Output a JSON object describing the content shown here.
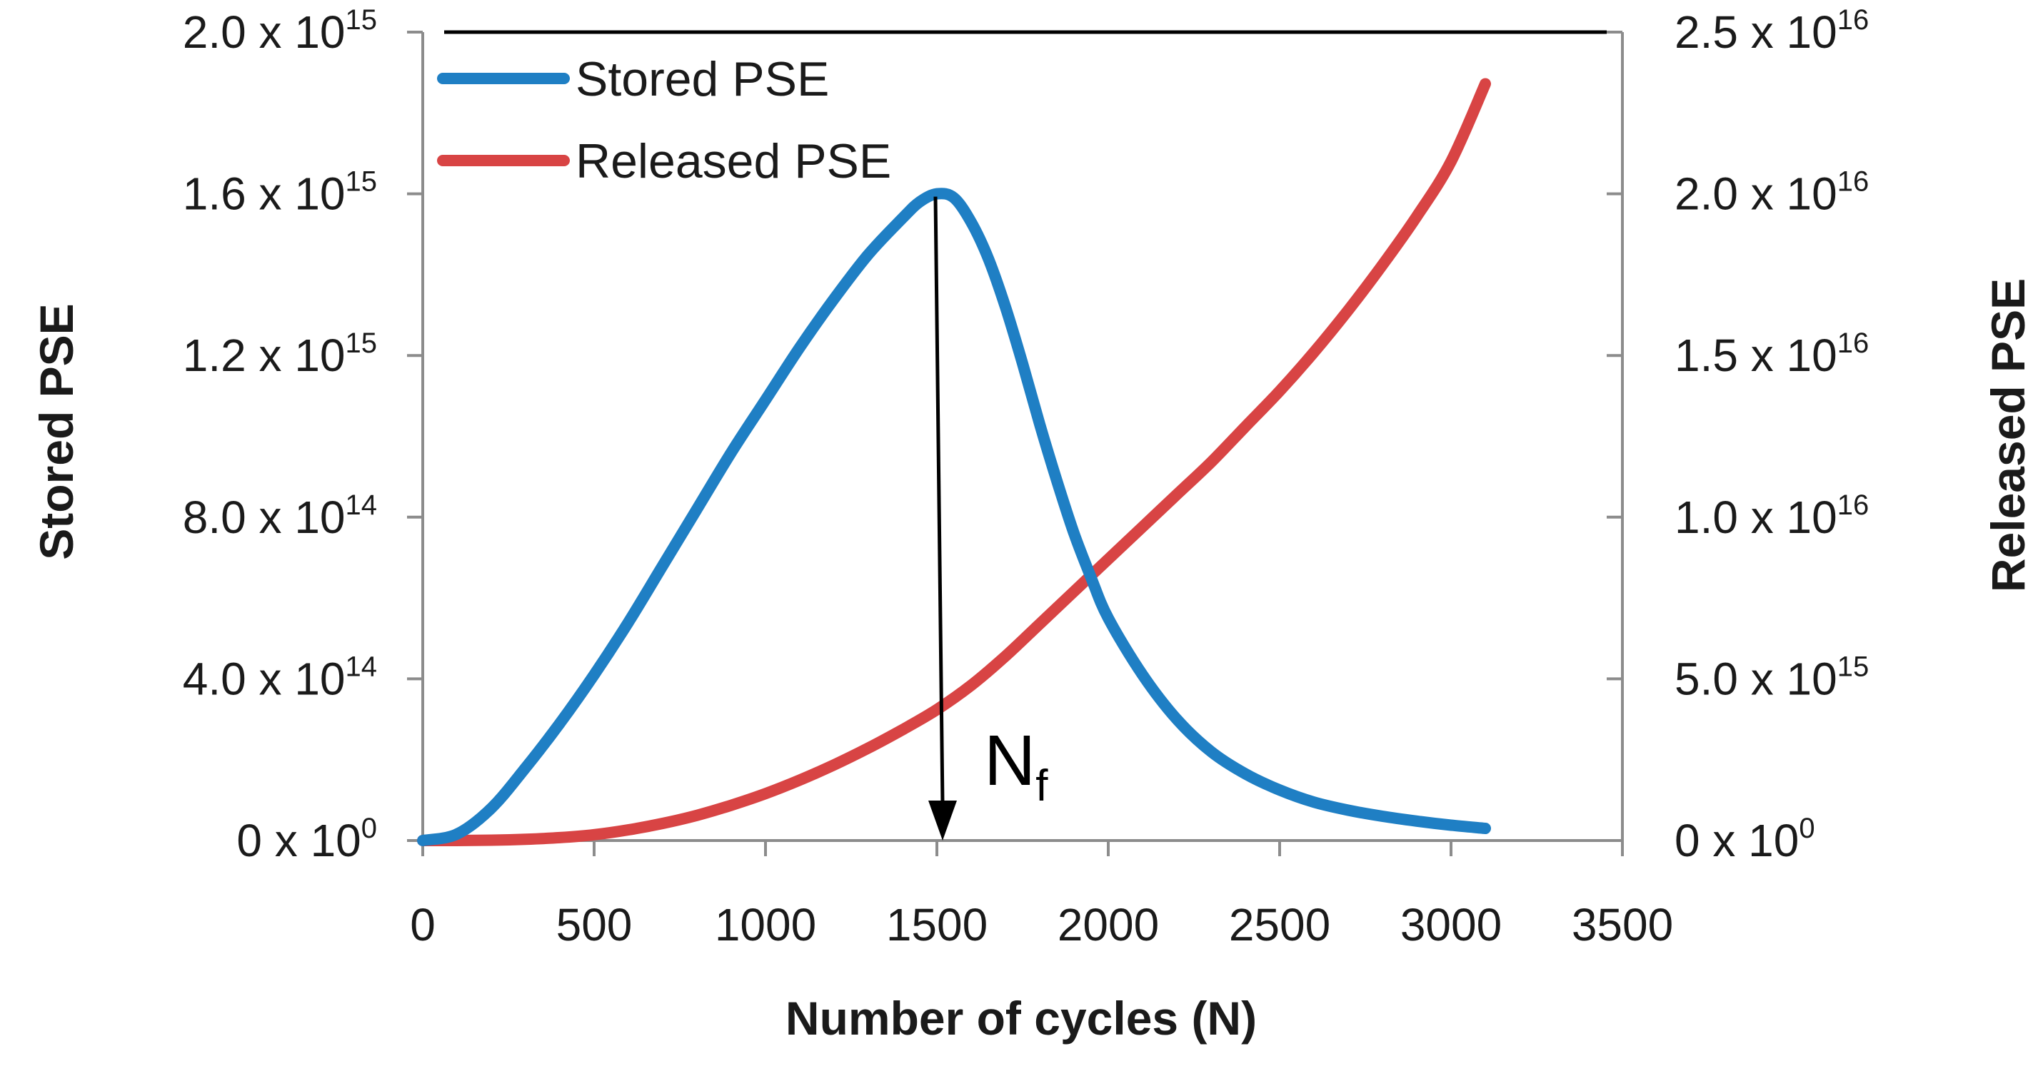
{
  "chart_data": {
    "type": "line",
    "title": "",
    "xlabel": "Number of cycles (N)",
    "ylabel_left": "Stored PSE",
    "ylabel_right": "Released PSE",
    "xlim": [
      0,
      3500
    ],
    "ylim_left": [
      0,
      2000000000000000.0
    ],
    "ylim_right": [
      0,
      2.5e+16
    ],
    "grid": false,
    "legend_position": "top-left",
    "x_ticks": [
      {
        "value": 0,
        "label": "0"
      },
      {
        "value": 500,
        "label": "500"
      },
      {
        "value": 1000,
        "label": "1000"
      },
      {
        "value": 1500,
        "label": "1500"
      },
      {
        "value": 2000,
        "label": "2000"
      },
      {
        "value": 2500,
        "label": "2500"
      },
      {
        "value": 3000,
        "label": "3000"
      },
      {
        "value": 3500,
        "label": "3500"
      }
    ],
    "y_left_ticks": [
      {
        "value": 0,
        "mantissa": "0 x 10",
        "exp": "0"
      },
      {
        "value": 400000000000000.0,
        "mantissa": "4.0 x 10",
        "exp": "14"
      },
      {
        "value": 800000000000000.0,
        "mantissa": "8.0 x 10",
        "exp": "14"
      },
      {
        "value": 1200000000000000.0,
        "mantissa": "1.2 x 10",
        "exp": "15"
      },
      {
        "value": 1600000000000000.0,
        "mantissa": "1.6 x 10",
        "exp": "15"
      },
      {
        "value": 2000000000000000.0,
        "mantissa": "2.0 x 10",
        "exp": "15"
      }
    ],
    "y_right_ticks": [
      {
        "value": 0,
        "mantissa": "0 x 10",
        "exp": "0"
      },
      {
        "value": 5000000000000000.0,
        "mantissa": "5.0 x 10",
        "exp": "15"
      },
      {
        "value": 1e+16,
        "mantissa": "1.0 x 10",
        "exp": "16"
      },
      {
        "value": 1.5e+16,
        "mantissa": "1.5 x 10",
        "exp": "16"
      },
      {
        "value": 2e+16,
        "mantissa": "2.0 x 10",
        "exp": "16"
      },
      {
        "value": 2.5e+16,
        "mantissa": "2.5 x 10",
        "exp": "16"
      }
    ],
    "series": [
      {
        "name": "Stored PSE",
        "axis": "left",
        "color": "#1f7fc4",
        "x": [
          0,
          100,
          200,
          300,
          400,
          500,
          600,
          700,
          800,
          900,
          1000,
          1100,
          1200,
          1300,
          1400,
          1450,
          1500,
          1550,
          1600,
          1650,
          1700,
          1750,
          1800,
          1850,
          1900,
          1950,
          2000,
          2100,
          2200,
          2300,
          2400,
          2500,
          2600,
          2700,
          2800,
          2900,
          3000,
          3100
        ],
        "y": [
          0,
          16000000000000.0,
          80000000000000.0,
          180000000000000.0,
          290000000000000.0,
          410000000000000.0,
          540000000000000.0,
          680000000000000.0,
          820000000000000.0,
          960000000000000.0,
          1090000000000000.0,
          1220000000000000.0,
          1340000000000000.0,
          1450000000000000.0,
          1540000000000000.0,
          1580000000000000.0,
          1600000000000000.0,
          1590000000000000.0,
          1530000000000000.0,
          1440000000000000.0,
          1320000000000000.0,
          1180000000000000.0,
          1030000000000000.0,
          890000000000000.0,
          760000000000000.0,
          650000000000000.0,
          550000000000000.0,
          410000000000000.0,
          300000000000000.0,
          220000000000000.0,
          165000000000000.0,
          125000000000000.0,
          95000000000000.0,
          75000000000000.0,
          60000000000000.0,
          48000000000000.0,
          38000000000000.0,
          30000000000000.0
        ]
      },
      {
        "name": "Released PSE",
        "axis": "right",
        "color": "#d84444",
        "x": [
          0,
          100,
          200,
          300,
          400,
          500,
          600,
          700,
          800,
          900,
          1000,
          1100,
          1200,
          1300,
          1400,
          1500,
          1600,
          1700,
          1800,
          1900,
          2000,
          2100,
          2200,
          2300,
          2400,
          2500,
          2600,
          2700,
          2800,
          2900,
          3000,
          3100
        ],
        "y": [
          0,
          0,
          10000000000000.0,
          40000000000000.0,
          90000000000000.0,
          180000000000000.0,
          330000000000000.0,
          530000000000000.0,
          780000000000000.0,
          1090000000000000.0,
          1450000000000000.0,
          1870000000000000.0,
          2340000000000000.0,
          2860000000000000.0,
          3430000000000000.0,
          4050000000000000.0,
          4800000000000000.0,
          5700000000000000.0,
          6700000000000000.0,
          7700000000000000.0,
          8700000000000000.0,
          9700000000000000.0,
          1.07e+16,
          1.17e+16,
          1.28e+16,
          1.39e+16,
          1.51e+16,
          1.64e+16,
          1.78e+16,
          1.93e+16,
          2.1e+16,
          2.34e+16
        ]
      }
    ],
    "annotation": {
      "label_main": "N",
      "label_sub": "f",
      "x": 1500,
      "y_from": 1600000000000000.0,
      "y_to": 0
    }
  }
}
